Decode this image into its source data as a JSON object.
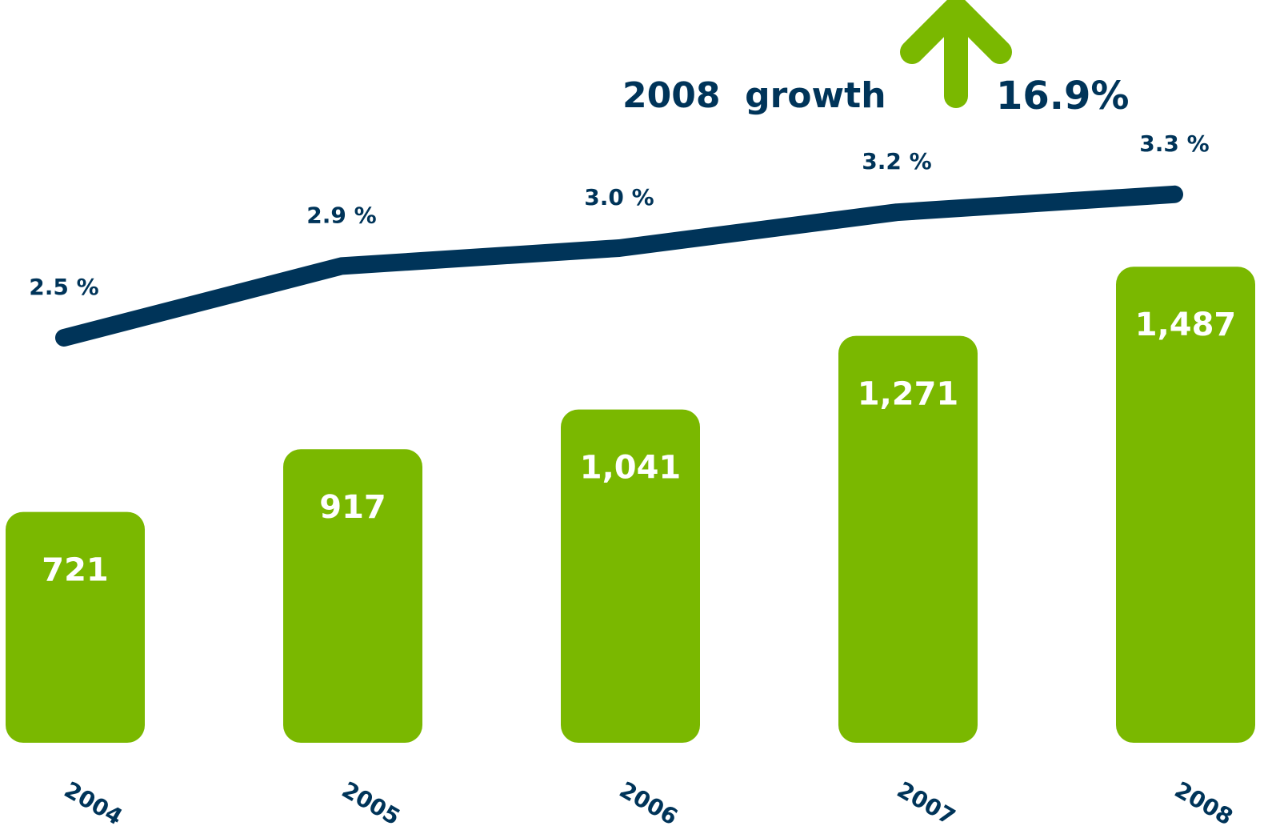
{
  "chart_data": {
    "type": "bar",
    "categories": [
      "2004",
      "2005",
      "2006",
      "2007",
      "2008"
    ],
    "bars": {
      "values": [
        721,
        917,
        1041,
        1271,
        1487
      ],
      "value_labels": [
        "721",
        "917",
        "1,041",
        "1,271",
        "1,487"
      ],
      "color": "#7ab800"
    },
    "line": {
      "values": [
        2.5,
        2.9,
        3.0,
        3.2,
        3.3
      ],
      "value_labels": [
        "2.5 %",
        "2.9 %",
        "3.0 %",
        "3.2 %",
        "3.3 %"
      ],
      "color": "#003459"
    },
    "annotations": [
      "2008  growth",
      "16.9%"
    ]
  }
}
